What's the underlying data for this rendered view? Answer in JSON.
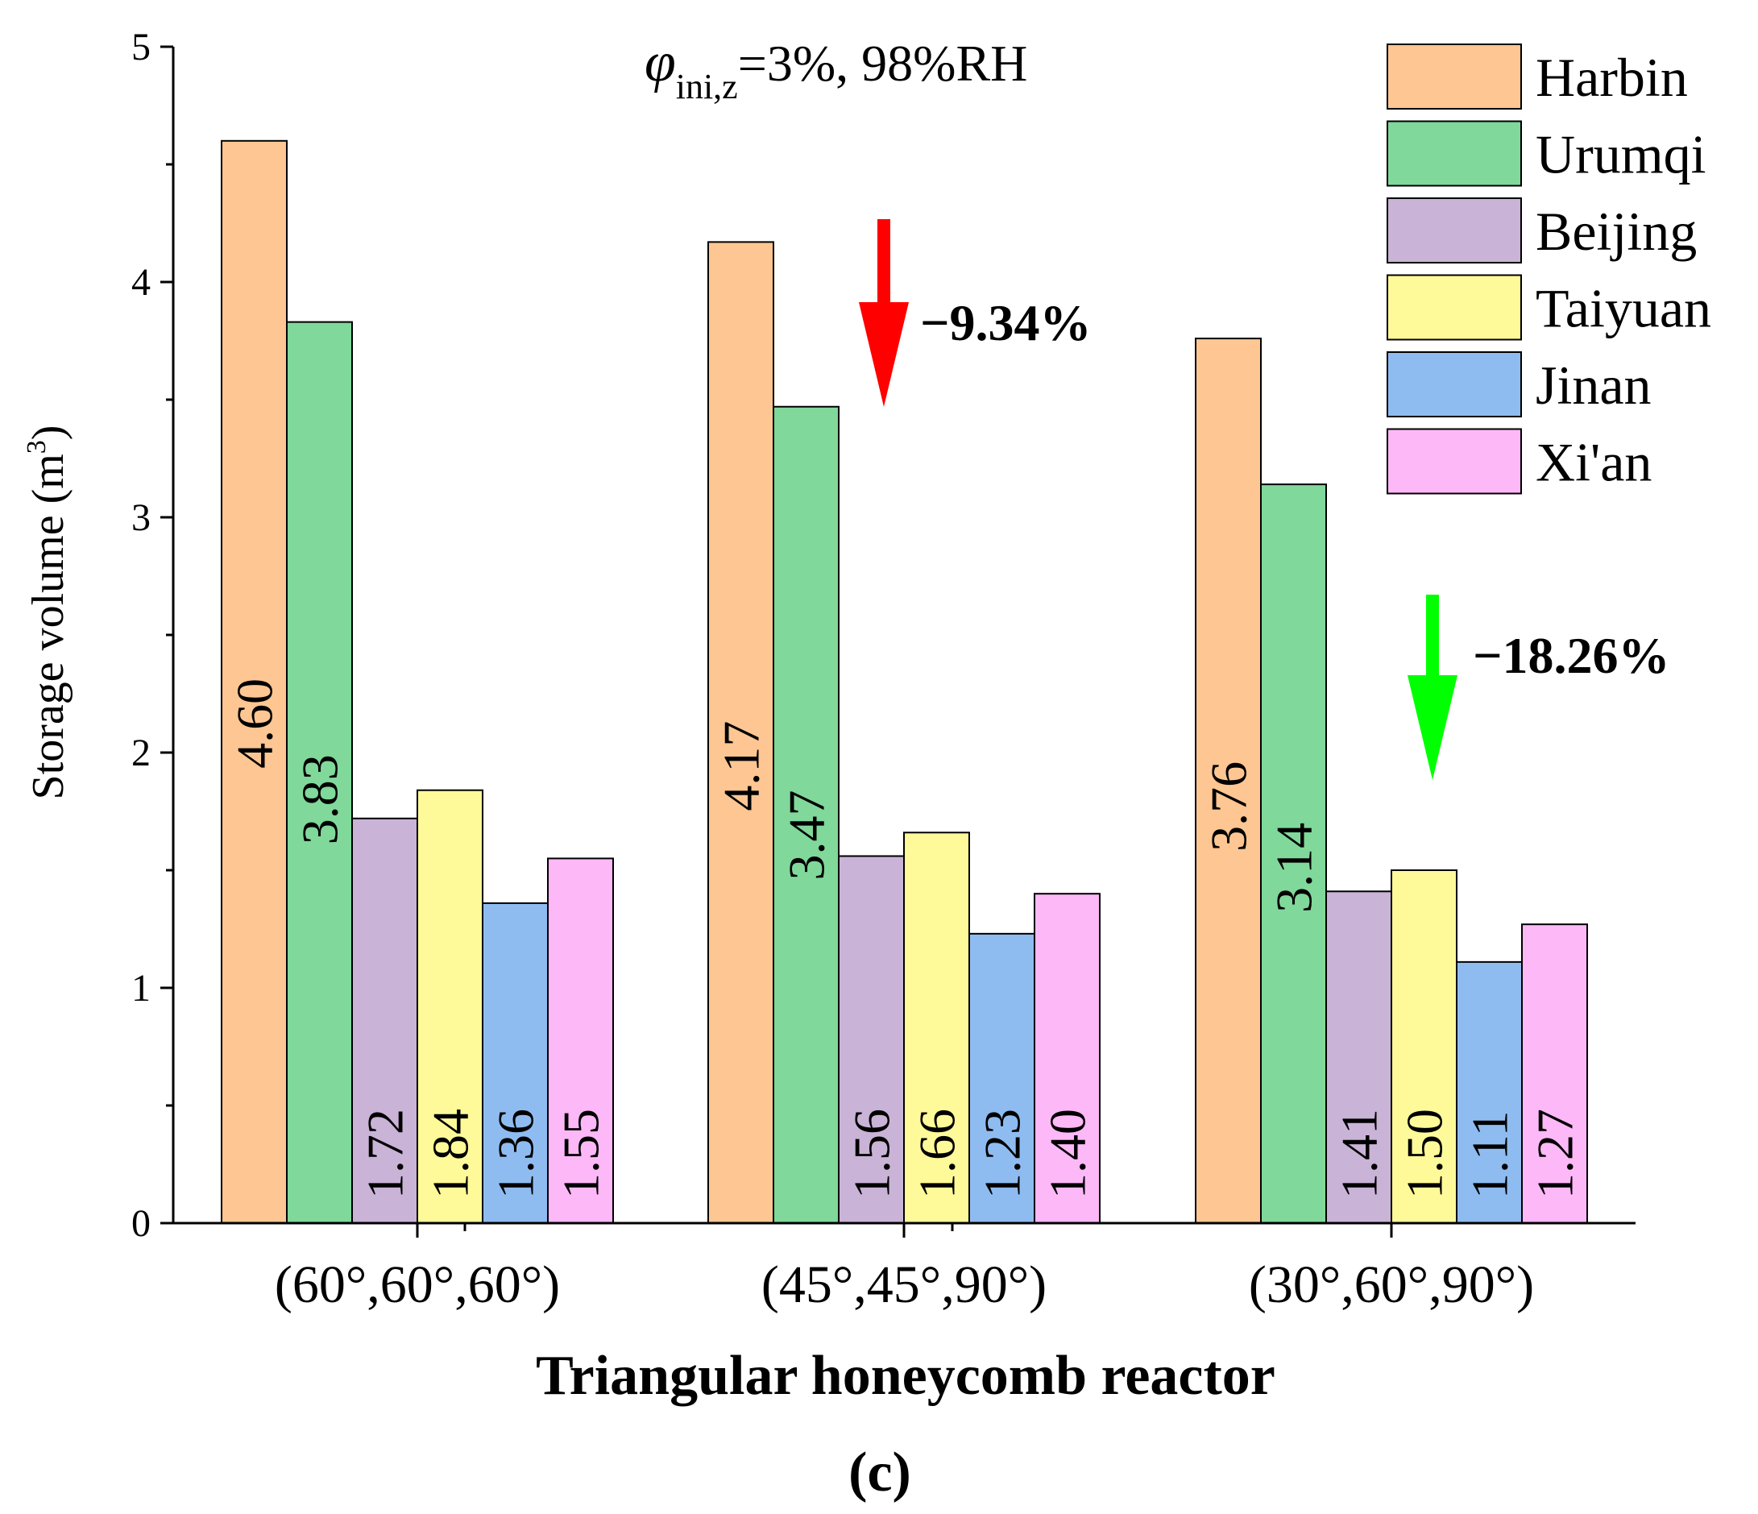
{
  "chart_data": {
    "type": "bar",
    "title": "",
    "condition": {
      "symbol": "φ",
      "subscript": "ini,z",
      "rest": "=3%, 98%RH"
    },
    "xlabel": "Triangular honeycomb reactor",
    "ylabel": "Storage volume (m",
    "ylabel_sup": "3",
    "ylabel_close": ")",
    "panel_label": "(c)",
    "ylim": [
      0,
      5
    ],
    "yticks": [
      "0",
      "1",
      "2",
      "3",
      "4",
      "5"
    ],
    "categories": [
      "(60°,60°,60°)",
      "(45°,45°,90°)",
      "(30°,60°,90°)"
    ],
    "series": [
      {
        "name": "Harbin",
        "color": "#FDC692",
        "values": [
          4.6,
          4.17,
          3.76
        ],
        "labels": [
          "4.60",
          "4.17",
          "3.76"
        ]
      },
      {
        "name": "Urumqi",
        "color": "#80D89A",
        "values": [
          3.83,
          3.47,
          3.14
        ],
        "labels": [
          "3.83",
          "3.47",
          "3.14"
        ]
      },
      {
        "name": "Beijing",
        "color": "#C9B3D6",
        "values": [
          1.72,
          1.56,
          1.41
        ],
        "labels": [
          "1.72",
          "1.56",
          "1.41"
        ]
      },
      {
        "name": "Taiyuan",
        "color": "#FFFA99",
        "values": [
          1.84,
          1.66,
          1.5
        ],
        "labels": [
          "1.84",
          "1.66",
          "1.50"
        ]
      },
      {
        "name": "Jinan",
        "color": "#8FBCF0",
        "values": [
          1.36,
          1.23,
          1.11
        ],
        "labels": [
          "1.36",
          "1.23",
          "1.11"
        ]
      },
      {
        "name": "Xi'an",
        "color": "#FDB8F7",
        "values": [
          1.55,
          1.4,
          1.27
        ],
        "labels": [
          "1.55",
          "1.40",
          "1.27"
        ]
      }
    ],
    "legend_position": "top-right",
    "annotations": [
      {
        "text": "−9.34%",
        "arrow_color": "#FF0000",
        "category_index": 1
      },
      {
        "text": "−18.26%",
        "arrow_color": "#00FF00",
        "category_index": 2
      }
    ]
  }
}
